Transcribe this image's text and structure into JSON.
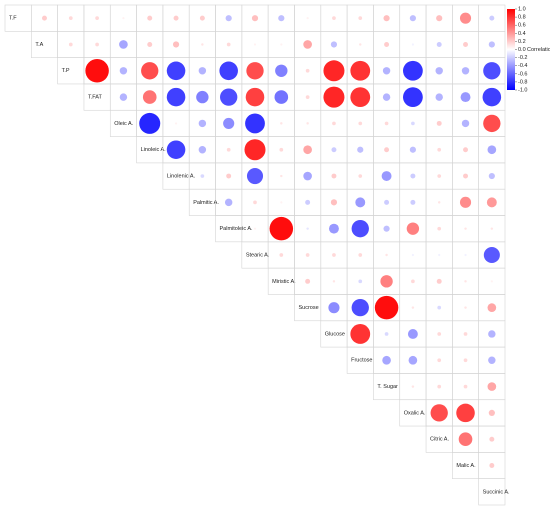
{
  "chart_data": {
    "type": "corrplot",
    "labels": [
      "T.F",
      "T.A",
      "T.P",
      "T.FAT",
      "Oleic A.",
      "Linoleic A.",
      "Linolenic A.",
      "Palmitic A.",
      "Palmitoleic A.",
      "Stearic A.",
      "Miristic A.",
      "Sucrose",
      "Glucose",
      "Fructose",
      "T. Sugar",
      "Oxalic A.",
      "Citric A.",
      "Malic A.",
      "Succinic A."
    ],
    "values": [
      [
        0.2,
        0.15,
        0.15,
        0.05,
        0.2,
        0.2,
        0.2,
        -0.25,
        0.25,
        -0.25,
        0.05,
        0.15,
        0.15,
        0.25,
        -0.25,
        0.25,
        0.45,
        -0.2
      ],
      [
        0.15,
        0.15,
        -0.35,
        0.2,
        0.25,
        0.1,
        0.15,
        0.05,
        0.05,
        0.35,
        -0.25,
        0.1,
        0.2,
        -0.05,
        -0.2,
        0.2,
        -0.25
      ],
      [
        0.95,
        -0.3,
        0.7,
        -0.75,
        -0.3,
        -0.75,
        0.7,
        -0.5,
        0.15,
        0.85,
        0.8,
        -0.3,
        -0.8,
        -0.3,
        -0.3,
        -0.7
      ],
      [
        -0.3,
        0.55,
        -0.75,
        -0.5,
        -0.7,
        0.75,
        -0.55,
        0.15,
        0.85,
        0.8,
        -0.3,
        -0.8,
        -0.3,
        -0.4,
        -0.75
      ],
      [
        -0.85,
        0.05,
        -0.3,
        -0.45,
        -0.8,
        0.1,
        0.1,
        0.15,
        0.15,
        0.15,
        -0.15,
        0.2,
        -0.3,
        0.7
      ],
      [
        -0.75,
        -0.3,
        0.15,
        0.85,
        0.15,
        0.35,
        -0.2,
        -0.25,
        0.2,
        -0.25,
        0.15,
        0.2,
        -0.35
      ],
      [
        -0.15,
        0.2,
        -0.65,
        0.1,
        -0.35,
        0.2,
        0.15,
        -0.4,
        -0.2,
        0.15,
        0.2,
        -0.25
      ],
      [
        -0.3,
        0.15,
        0.05,
        -0.2,
        0.25,
        -0.4,
        -0.2,
        -0.2,
        0.1,
        0.45,
        0.4
      ],
      [
        0.05,
        0.95,
        -0.1,
        -0.4,
        -0.7,
        -0.25,
        0.5,
        0.15,
        0.1,
        0.1
      ],
      [
        0.15,
        0.15,
        0.15,
        0.15,
        0.1,
        -0.05,
        -0.05,
        -0.05,
        -0.65
      ],
      [
        0.2,
        0.1,
        -0.15,
        0.5,
        0.15,
        0.2,
        0.1,
        0.05
      ],
      [
        -0.45,
        -0.7,
        0.95,
        0.1,
        -0.15,
        0.1,
        0.35
      ],
      [
        0.8,
        -0.15,
        -0.4,
        0.15,
        0.15,
        -0.3
      ],
      [
        -0.35,
        -0.35,
        0.15,
        0.15,
        -0.3
      ],
      [
        0.1,
        0.15,
        0.15,
        0.35
      ],
      [
        0.7,
        0.75,
        0.25
      ],
      [
        0.55,
        0.2
      ],
      [
        0.2
      ]
    ],
    "colorscale": [
      "#0000ff",
      "#ffffff",
      "#ff0000"
    ],
    "zlim": [
      -1,
      1
    ],
    "zticks": [
      {
        "value": 1,
        "label": "1.0"
      },
      {
        "value": 0.8,
        "label": "0.8"
      },
      {
        "value": 0.6,
        "label": "0.6"
      },
      {
        "value": 0.4,
        "label": "0.4"
      },
      {
        "value": 0.2,
        "label": "0.2"
      },
      {
        "value": 0,
        "label": "0.0"
      },
      {
        "value": -0.2,
        "label": "-0.2"
      },
      {
        "value": -0.4,
        "label": "-0.4"
      },
      {
        "value": -0.6,
        "label": "-0.6"
      },
      {
        "value": -0.8,
        "label": "-0.8"
      },
      {
        "value": -1,
        "label": "-1.0"
      }
    ],
    "legend_title": "Correlation"
  }
}
